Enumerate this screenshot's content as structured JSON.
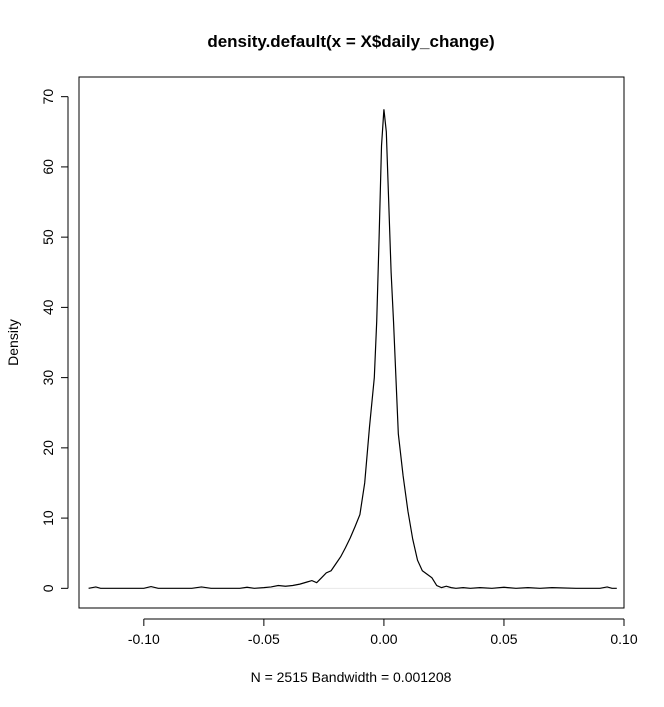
{
  "chart_data": {
    "type": "line",
    "title": "density.default(x = X$daily_change)",
    "xlabel": "N = 2515   Bandwidth = 0.001208",
    "ylabel": "Density",
    "xlim": [
      -0.127,
      0.1
    ],
    "ylim": [
      -2.8,
      72.8
    ],
    "x_ticks": [
      -0.1,
      -0.05,
      0.0,
      0.05,
      0.1
    ],
    "x_tick_labels": [
      "-0.10",
      "-0.05",
      "0.00",
      "0.05",
      "0.10"
    ],
    "y_ticks": [
      0,
      10,
      20,
      30,
      40,
      50,
      60,
      70
    ],
    "y_tick_labels": [
      "0",
      "10",
      "20",
      "30",
      "40",
      "50",
      "60",
      "70"
    ],
    "series": [
      {
        "x": [
          -0.123,
          -0.12,
          -0.118,
          -0.11,
          -0.1,
          -0.097,
          -0.094,
          -0.09,
          -0.08,
          -0.076,
          -0.072,
          -0.065,
          -0.06,
          -0.057,
          -0.054,
          -0.05,
          -0.047,
          -0.044,
          -0.041,
          -0.038,
          -0.035,
          -0.032,
          -0.03,
          -0.028,
          -0.026,
          -0.024,
          -0.022,
          -0.02,
          -0.018,
          -0.016,
          -0.014,
          -0.012,
          -0.01,
          -0.008,
          -0.006,
          -0.004,
          -0.003,
          -0.002,
          -0.001,
          0.0,
          0.001,
          0.002,
          0.003,
          0.004,
          0.005,
          0.006,
          0.008,
          0.01,
          0.012,
          0.014,
          0.016,
          0.018,
          0.02,
          0.022,
          0.024,
          0.026,
          0.028,
          0.03,
          0.033,
          0.036,
          0.04,
          0.045,
          0.05,
          0.055,
          0.06,
          0.065,
          0.07,
          0.08,
          0.09,
          0.093,
          0.095,
          0.097
        ],
        "y": [
          0.0,
          0.2,
          0.0,
          0.0,
          0.0,
          0.25,
          0.0,
          0.0,
          0.0,
          0.2,
          0.0,
          0.0,
          0.0,
          0.15,
          0.0,
          0.1,
          0.2,
          0.4,
          0.3,
          0.4,
          0.6,
          0.9,
          1.1,
          0.8,
          1.5,
          2.2,
          2.5,
          3.5,
          4.5,
          5.8,
          7.2,
          8.8,
          10.5,
          15.0,
          23.0,
          30.0,
          38.0,
          50.0,
          63.0,
          68.2,
          65.0,
          55.0,
          45.0,
          38.0,
          30.0,
          22.0,
          16.0,
          11.0,
          7.0,
          4.0,
          2.5,
          2.0,
          1.5,
          0.4,
          0.1,
          0.3,
          0.1,
          0.0,
          0.1,
          0.0,
          0.1,
          0.0,
          0.15,
          0.0,
          0.1,
          0.0,
          0.1,
          0.0,
          0.0,
          0.2,
          0.0,
          0.0
        ]
      }
    ]
  }
}
